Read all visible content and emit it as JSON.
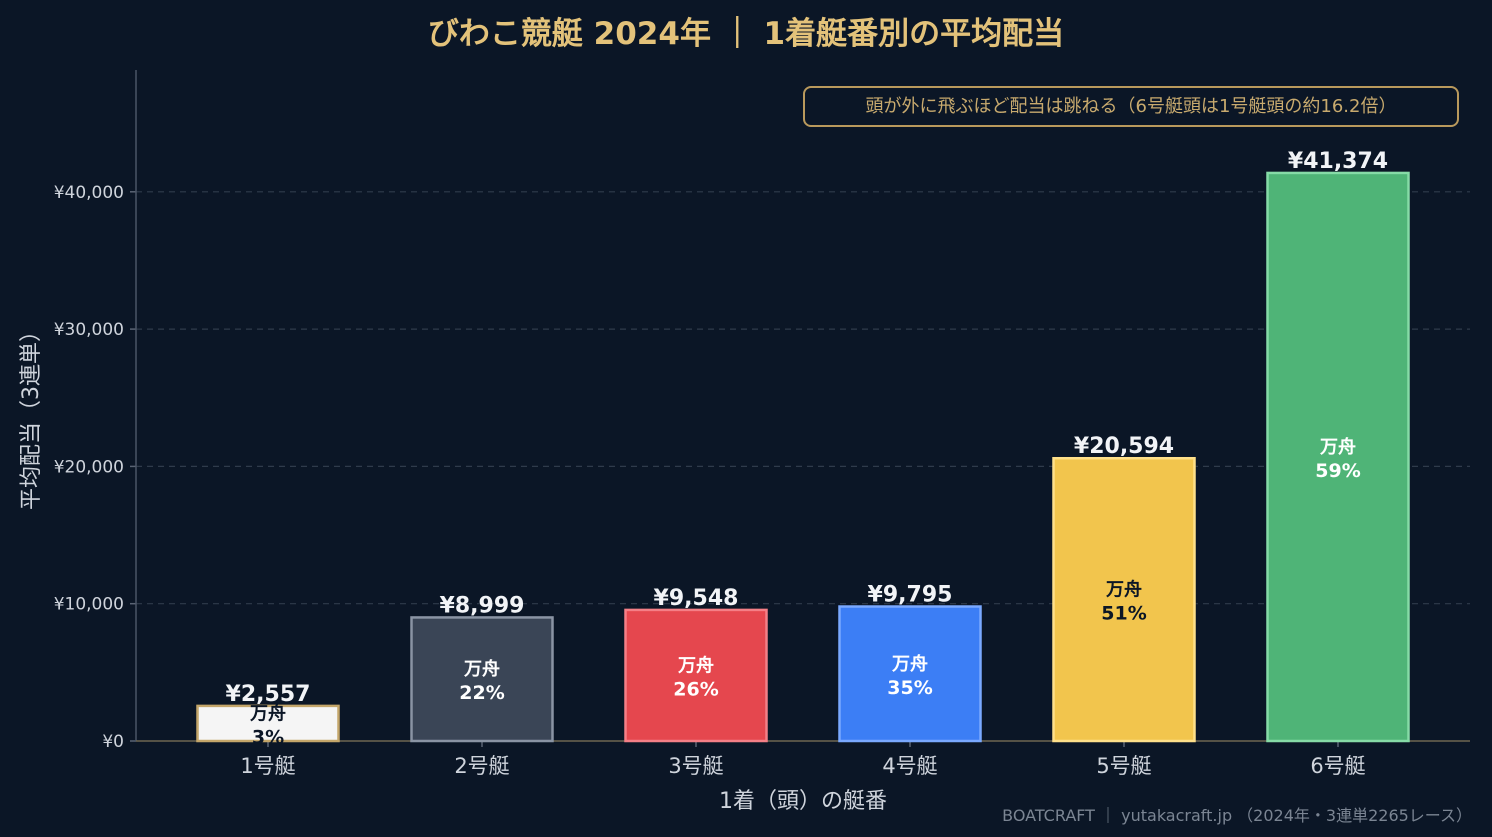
{
  "chart_data": {
    "type": "bar",
    "title": "びわこ競艇 2024年 ｜ 1着艇番別の平均配当",
    "xlabel": "1着（頭）の艇番",
    "ylabel": "平均配当（3連単）",
    "ylim": [
      0,
      48000
    ],
    "yticks": [
      "¥0",
      "¥10,000",
      "¥20,000",
      "¥30,000",
      "¥40,000"
    ],
    "ytick_values": [
      0,
      10000,
      20000,
      30000,
      40000
    ],
    "grid": true,
    "categories": [
      "1号艇",
      "2号艇",
      "3号艇",
      "4号艇",
      "5号艇",
      "6号艇"
    ],
    "values": [
      2557,
      8999,
      9548,
      9795,
      20594,
      41374
    ],
    "value_labels": [
      "¥2,557",
      "¥8,999",
      "¥9,548",
      "¥9,795",
      "¥20,594",
      "¥41,374"
    ],
    "inner_label": "万舟",
    "manshu_rates": [
      "3%",
      "22%",
      "26%",
      "35%",
      "51%",
      "59%"
    ],
    "bar_colors": [
      "#f5f5f5",
      "#3a4556",
      "#e5474e",
      "#3c7ef5",
      "#f2c54d",
      "#4fb477"
    ],
    "edge_colors": [
      "#c4a66a",
      "#8a94a4",
      "#f57f86",
      "#7aa9ff",
      "#ffe08a",
      "#86dba7"
    ],
    "inner_text_colors": [
      "#0b1626",
      "#ffffff",
      "#ffffff",
      "#ffffff",
      "#0b1626",
      "#ffffff"
    ],
    "annotation": "頭が外に飛ぶほど配当は跳ねる（6号艇頭は1号艇頭の約16.2倍）",
    "footer": "BOATCRAFT ｜ yutakacraft.jp （2024年・3連単2265レース）"
  }
}
